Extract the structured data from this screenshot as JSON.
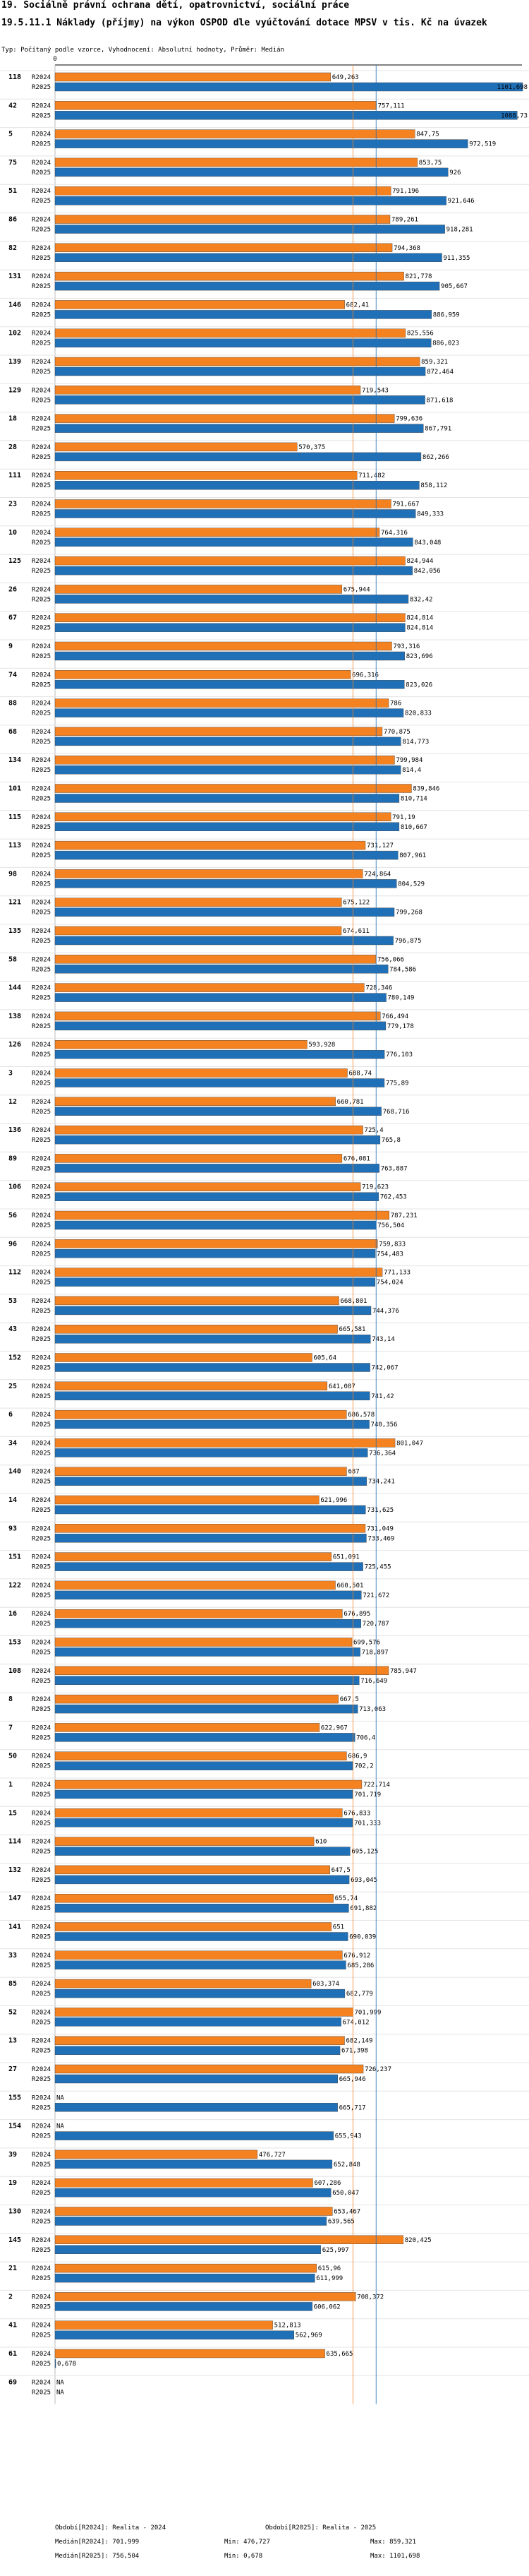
{
  "header": {
    "title": "19. Sociálně právní ochrana dětí, opatrovnictví, sociální práce",
    "subtitle": "19.5.11.1 Náklady (příjmy) na výkon OSPOD dle vyúčtování dotace MPSV v tis. Kč na úvazek",
    "settings": "Typ: Počítaný podle vzorce, Vyhodnocení: Absolutní hodnoty, Průměr: Medián"
  },
  "chart_data": {
    "type": "bar",
    "orientation": "horizontal",
    "title": "19.5.11.1 Náklady (příjmy) na výkon OSPOD dle vyúčtování dotace MPSV v tis. Kč na úvazek",
    "xlim": [
      0,
      1100
    ],
    "zero_label": "0",
    "series": [
      {
        "name": "R2024",
        "color": "#f58220"
      },
      {
        "name": "R2025",
        "color": "#2070b8"
      }
    ],
    "median_2024": 701.999,
    "median_2025": 756.504,
    "categories": [
      {
        "id": "118",
        "r2024": 649.263,
        "l2024": "649,263",
        "r2025": 1101.698,
        "l2025": "1101,698"
      },
      {
        "id": "42",
        "r2024": 757.111,
        "l2024": "757,111",
        "r2025": 1088.73,
        "l2025": "1088,73"
      },
      {
        "id": "5",
        "r2024": 847.75,
        "l2024": "847,75",
        "r2025": 972.519,
        "l2025": "972,519"
      },
      {
        "id": "75",
        "r2024": 853.75,
        "l2024": "853,75",
        "r2025": 926,
        "l2025": "926"
      },
      {
        "id": "51",
        "r2024": 791.196,
        "l2024": "791,196",
        "r2025": 921.646,
        "l2025": "921,646"
      },
      {
        "id": "86",
        "r2024": 789.261,
        "l2024": "789,261",
        "r2025": 918.281,
        "l2025": "918,281"
      },
      {
        "id": "82",
        "r2024": 794.368,
        "l2024": "794,368",
        "r2025": 911.355,
        "l2025": "911,355"
      },
      {
        "id": "131",
        "r2024": 821.778,
        "l2024": "821,778",
        "r2025": 905.667,
        "l2025": "905,667"
      },
      {
        "id": "146",
        "r2024": 682.41,
        "l2024": "682,41",
        "r2025": 886.959,
        "l2025": "886,959"
      },
      {
        "id": "102",
        "r2024": 825.556,
        "l2024": "825,556",
        "r2025": 886.023,
        "l2025": "886,023"
      },
      {
        "id": "139",
        "r2024": 859.321,
        "l2024": "859,321",
        "r2025": 872.464,
        "l2025": "872,464"
      },
      {
        "id": "129",
        "r2024": 719.543,
        "l2024": "719,543",
        "r2025": 871.618,
        "l2025": "871,618"
      },
      {
        "id": "18",
        "r2024": 799.636,
        "l2024": "799,636",
        "r2025": 867.791,
        "l2025": "867,791"
      },
      {
        "id": "28",
        "r2024": 570.375,
        "l2024": "570,375",
        "r2025": 862.266,
        "l2025": "862,266"
      },
      {
        "id": "111",
        "r2024": 711.482,
        "l2024": "711,482",
        "r2025": 858.112,
        "l2025": "858,112"
      },
      {
        "id": "23",
        "r2024": 791.667,
        "l2024": "791,667",
        "r2025": 849.333,
        "l2025": "849,333"
      },
      {
        "id": "10",
        "r2024": 764.316,
        "l2024": "764,316",
        "r2025": 843.048,
        "l2025": "843,048"
      },
      {
        "id": "125",
        "r2024": 824.944,
        "l2024": "824,944",
        "r2025": 842.056,
        "l2025": "842,056"
      },
      {
        "id": "26",
        "r2024": 675.944,
        "l2024": "675,944",
        "r2025": 832.42,
        "l2025": "832,42"
      },
      {
        "id": "67",
        "r2024": 824.814,
        "l2024": "824,814",
        "r2025": 824.814,
        "l2025": "824,814"
      },
      {
        "id": "9",
        "r2024": 793.316,
        "l2024": "793,316",
        "r2025": 823.696,
        "l2025": "823,696"
      },
      {
        "id": "74",
        "r2024": 696.316,
        "l2024": "696,316",
        "r2025": 823.026,
        "l2025": "823,026"
      },
      {
        "id": "88",
        "r2024": 786,
        "l2024": "786",
        "r2025": 820.833,
        "l2025": "820,833"
      },
      {
        "id": "68",
        "r2024": 770.875,
        "l2024": "770,875",
        "r2025": 814.773,
        "l2025": "814,773"
      },
      {
        "id": "134",
        "r2024": 799.984,
        "l2024": "799,984",
        "r2025": 814.4,
        "l2025": "814,4"
      },
      {
        "id": "101",
        "r2024": 839.846,
        "l2024": "839,846",
        "r2025": 810.714,
        "l2025": "810,714"
      },
      {
        "id": "115",
        "r2024": 791.19,
        "l2024": "791,19",
        "r2025": 810.667,
        "l2025": "810,667"
      },
      {
        "id": "113",
        "r2024": 731.127,
        "l2024": "731,127",
        "r2025": 807.961,
        "l2025": "807,961"
      },
      {
        "id": "98",
        "r2024": 724.864,
        "l2024": "724,864",
        "r2025": 804.529,
        "l2025": "804,529"
      },
      {
        "id": "121",
        "r2024": 675.122,
        "l2024": "675,122",
        "r2025": 799.268,
        "l2025": "799,268"
      },
      {
        "id": "135",
        "r2024": 674.611,
        "l2024": "674,611",
        "r2025": 796.875,
        "l2025": "796,875"
      },
      {
        "id": "58",
        "r2024": 756.066,
        "l2024": "756,066",
        "r2025": 784.586,
        "l2025": "784,586"
      },
      {
        "id": "144",
        "r2024": 728.346,
        "l2024": "728,346",
        "r2025": 780.149,
        "l2025": "780,149"
      },
      {
        "id": "138",
        "r2024": 766.494,
        "l2024": "766,494",
        "r2025": 779.178,
        "l2025": "779,178"
      },
      {
        "id": "126",
        "r2024": 593.928,
        "l2024": "593,928",
        "r2025": 776.103,
        "l2025": "776,103"
      },
      {
        "id": "3",
        "r2024": 688.74,
        "l2024": "688,74",
        "r2025": 775.89,
        "l2025": "775,89"
      },
      {
        "id": "12",
        "r2024": 660.781,
        "l2024": "660,781",
        "r2025": 768.716,
        "l2025": "768,716"
      },
      {
        "id": "136",
        "r2024": 725.4,
        "l2024": "725,4",
        "r2025": 765.8,
        "l2025": "765,8"
      },
      {
        "id": "89",
        "r2024": 676.081,
        "l2024": "676,081",
        "r2025": 763.887,
        "l2025": "763,887"
      },
      {
        "id": "106",
        "r2024": 719.623,
        "l2024": "719,623",
        "r2025": 762.453,
        "l2025": "762,453"
      },
      {
        "id": "56",
        "r2024": 787.231,
        "l2024": "787,231",
        "r2025": 756.504,
        "l2025": "756,504"
      },
      {
        "id": "96",
        "r2024": 759.833,
        "l2024": "759,833",
        "r2025": 754.483,
        "l2025": "754,483"
      },
      {
        "id": "112",
        "r2024": 771.133,
        "l2024": "771,133",
        "r2025": 754.024,
        "l2025": "754,024"
      },
      {
        "id": "53",
        "r2024": 668.801,
        "l2024": "668,801",
        "r2025": 744.376,
        "l2025": "744,376"
      },
      {
        "id": "43",
        "r2024": 665.581,
        "l2024": "665,581",
        "r2025": 743.14,
        "l2025": "743,14"
      },
      {
        "id": "152",
        "r2024": 605.64,
        "l2024": "605,64",
        "r2025": 742.067,
        "l2025": "742,067"
      },
      {
        "id": "25",
        "r2024": 641.087,
        "l2024": "641,087",
        "r2025": 741.42,
        "l2025": "741,42"
      },
      {
        "id": "6",
        "r2024": 686.578,
        "l2024": "686,578",
        "r2025": 740.356,
        "l2025": "740,356"
      },
      {
        "id": "34",
        "r2024": 801.047,
        "l2024": "801,047",
        "r2025": 736.364,
        "l2025": "736,364"
      },
      {
        "id": "140",
        "r2024": 687,
        "l2024": "687",
        "r2025": 734.241,
        "l2025": "734,241"
      },
      {
        "id": "14",
        "r2024": 621.996,
        "l2024": "621,996",
        "r2025": 731.625,
        "l2025": "731,625"
      },
      {
        "id": "93",
        "r2024": 731.049,
        "l2024": "731,049",
        "r2025": 733.469,
        "l2025": "733,469"
      },
      {
        "id": "151",
        "r2024": 651.091,
        "l2024": "651,091",
        "r2025": 725.455,
        "l2025": "725,455"
      },
      {
        "id": "122",
        "r2024": 660.501,
        "l2024": "660,501",
        "r2025": 721.672,
        "l2025": "721,672"
      },
      {
        "id": "16",
        "r2024": 676.895,
        "l2024": "676,895",
        "r2025": 720.787,
        "l2025": "720,787"
      },
      {
        "id": "153",
        "r2024": 699.576,
        "l2024": "699,576",
        "r2025": 718.897,
        "l2025": "718,897"
      },
      {
        "id": "108",
        "r2024": 785.947,
        "l2024": "785,947",
        "r2025": 716.649,
        "l2025": "716,649"
      },
      {
        "id": "8",
        "r2024": 667.5,
        "l2024": "667,5",
        "r2025": 713.063,
        "l2025": "713,063"
      },
      {
        "id": "7",
        "r2024": 622.967,
        "l2024": "622,967",
        "r2025": 706.4,
        "l2025": "706,4"
      },
      {
        "id": "50",
        "r2024": 686.9,
        "l2024": "686,9",
        "r2025": 702.2,
        "l2025": "702,2"
      },
      {
        "id": "1",
        "r2024": 722.714,
        "l2024": "722,714",
        "r2025": 701.719,
        "l2025": "701,719"
      },
      {
        "id": "15",
        "r2024": 676.833,
        "l2024": "676,833",
        "r2025": 701.333,
        "l2025": "701,333"
      },
      {
        "id": "114",
        "r2024": 610,
        "l2024": "610",
        "r2025": 695.125,
        "l2025": "695,125"
      },
      {
        "id": "132",
        "r2024": 647.5,
        "l2024": "647,5",
        "r2025": 693.045,
        "l2025": "693,045"
      },
      {
        "id": "147",
        "r2024": 655.74,
        "l2024": "655,74",
        "r2025": 691.882,
        "l2025": "691,882"
      },
      {
        "id": "141",
        "r2024": 651,
        "l2024": "651",
        "r2025": 690.039,
        "l2025": "690,039"
      },
      {
        "id": "33",
        "r2024": 676.912,
        "l2024": "676,912",
        "r2025": 685.286,
        "l2025": "685,286"
      },
      {
        "id": "85",
        "r2024": 603.374,
        "l2024": "603,374",
        "r2025": 682.779,
        "l2025": "682,779"
      },
      {
        "id": "52",
        "r2024": 701.999,
        "l2024": "701,999",
        "r2025": 674.012,
        "l2025": "674,012"
      },
      {
        "id": "13",
        "r2024": 682.149,
        "l2024": "682,149",
        "r2025": 671.398,
        "l2025": "671,398"
      },
      {
        "id": "27",
        "r2024": 726.237,
        "l2024": "726,237",
        "r2025": 665.946,
        "l2025": "665,946"
      },
      {
        "id": "155",
        "r2024": null,
        "l2024": "NA",
        "r2025": 665.717,
        "l2025": "665,717"
      },
      {
        "id": "154",
        "r2024": null,
        "l2024": "NA",
        "r2025": 655.943,
        "l2025": "655,943"
      },
      {
        "id": "39",
        "r2024": 476.727,
        "l2024": "476,727",
        "r2025": 652.848,
        "l2025": "652,848"
      },
      {
        "id": "19",
        "r2024": 607.286,
        "l2024": "607,286",
        "r2025": 650.047,
        "l2025": "650,047"
      },
      {
        "id": "130",
        "r2024": 653.467,
        "l2024": "653,467",
        "r2025": 639.565,
        "l2025": "639,565"
      },
      {
        "id": "145",
        "r2024": 820.425,
        "l2024": "820,425",
        "r2025": 625.997,
        "l2025": "625,997"
      },
      {
        "id": "21",
        "r2024": 615.96,
        "l2024": "615,96",
        "r2025": 611.999,
        "l2025": "611,999"
      },
      {
        "id": "2",
        "r2024": 708.372,
        "l2024": "708,372",
        "r2025": 606.062,
        "l2025": "606,062"
      },
      {
        "id": "41",
        "r2024": 512.813,
        "l2024": "512,813",
        "r2025": 562.969,
        "l2025": "562,969"
      },
      {
        "id": "61",
        "r2024": 635.665,
        "l2024": "635,665",
        "r2025": 0.678,
        "l2025": "0,678"
      },
      {
        "id": "69",
        "r2024": null,
        "l2024": "NA",
        "r2025": null,
        "l2025": "NA"
      }
    ]
  },
  "footer": {
    "period_2024": "Období[R2024]: Realita - 2024",
    "median_2024": "Medián[R2024]: 701,999",
    "min_2024": "Min: 476,727",
    "max_2024": "Max: 859,321",
    "period_2025": "Období[R2025]: Realita - 2025",
    "median_2025": "Medián[R2025]: 756,504",
    "min_2025": "Min: 0,678",
    "max_2025": "Max: 1101,698"
  }
}
